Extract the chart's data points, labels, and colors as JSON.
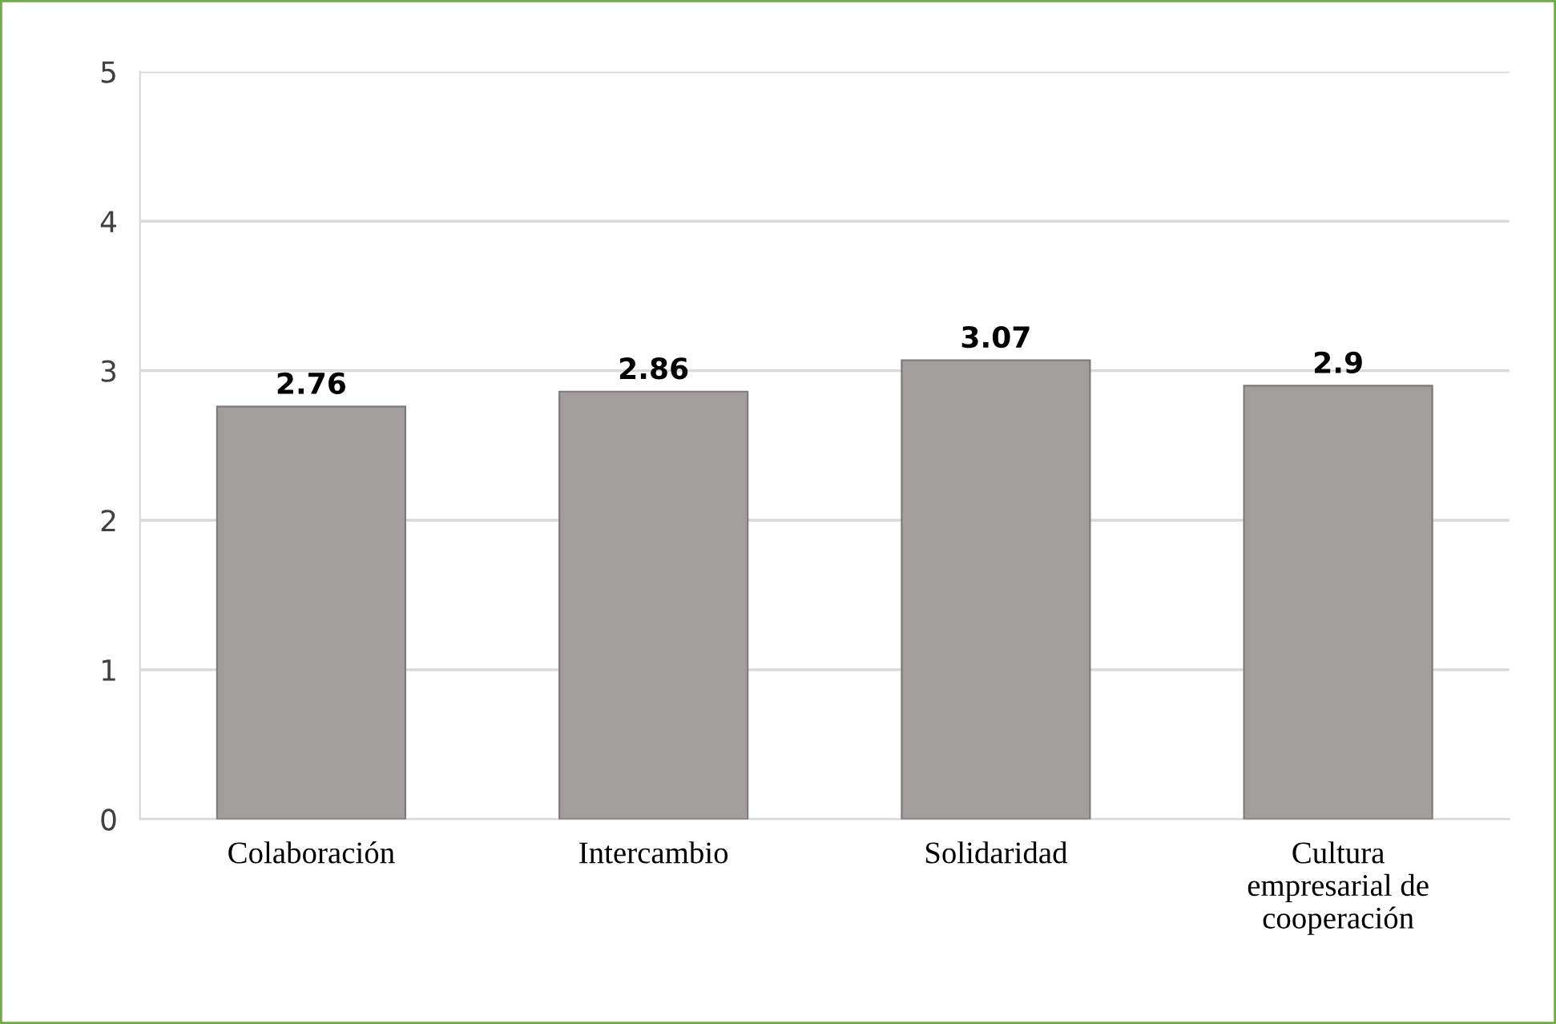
{
  "chart_data": {
    "type": "bar",
    "categories": [
      "Colaboración",
      "Intercambio",
      "Solidaridad",
      "Cultura\nempresarial de\ncooperación"
    ],
    "values": [
      2.76,
      2.86,
      3.07,
      2.9
    ],
    "color": "#a29e9e",
    "data_labels": true,
    "ylim": [
      0,
      5
    ],
    "yticks": [
      0,
      1,
      2,
      3,
      4,
      5
    ],
    "grid": "y",
    "legend": false
  }
}
